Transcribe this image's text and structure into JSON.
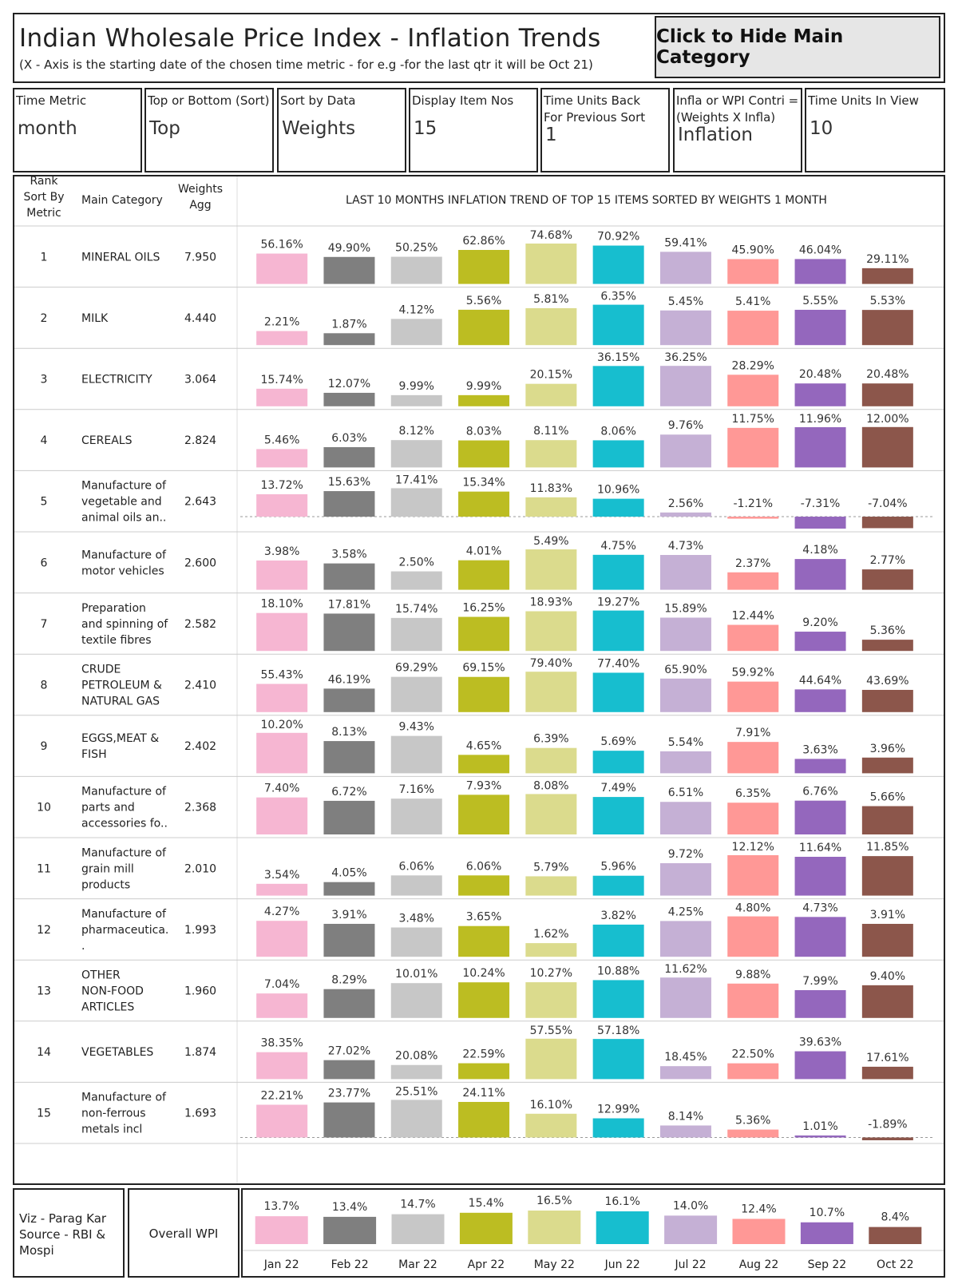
{
  "header": {
    "title": "Indian Wholesale Price Index - Inflation Trends",
    "subtitle": "(X - Axis is the starting date of the chosen time metric - for e.g -for the last qtr it will be Oct 21)",
    "hide_button": "Click to Hide Main Category"
  },
  "params": [
    {
      "label": "Time Metric",
      "value": "month"
    },
    {
      "label": "Top or Bottom (Sort)",
      "value": "Top"
    },
    {
      "label": "Sort by Data",
      "value": "Weights"
    },
    {
      "label": "Display Item Nos",
      "value": "15"
    },
    {
      "label": "Time Units Back\nFor Previous Sort",
      "value": "1"
    },
    {
      "label": "Infla or WPI Contri =\n(Weights X Infla)",
      "value": "Inflation"
    },
    {
      "label": "Time Units In View",
      "value": "10"
    }
  ],
  "table": {
    "col_rank": "Rank\nSort By\nMetric",
    "col_category": "Main Category",
    "col_weights": "Weights\nAgg"
  },
  "footer": {
    "credit": "Viz - Parag Kar\nSource - RBI &\nMospi",
    "overall_label": "Overall WPI"
  },
  "colors": [
    "#f6b6d2",
    "#7f7f7f",
    "#c7c7c7",
    "#bcbd22",
    "#dbdb8d",
    "#17becf",
    "#c5b0d5",
    "#ff9896",
    "#9467bd",
    "#8c564b"
  ],
  "chart_data": {
    "type": "bar",
    "title": "LAST 10 MONTHS INFLATION TREND OF TOP 15 ITEMS SORTED BY WEIGHTS 1 MONTH",
    "categories": [
      "Jan 22",
      "Feb 22",
      "Mar 22",
      "Apr 22",
      "May 22",
      "Jun 22",
      "Jul 22",
      "Aug 22",
      "Sep 22",
      "Oct 22"
    ],
    "rows": [
      {
        "rank": "1",
        "name": "MINERAL OILS",
        "weight": "7.950",
        "values": [
          56.16,
          49.9,
          50.25,
          62.86,
          74.68,
          70.92,
          59.41,
          45.9,
          46.04,
          29.11
        ]
      },
      {
        "rank": "2",
        "name": "MILK",
        "weight": "4.440",
        "values": [
          2.21,
          1.87,
          4.12,
          5.56,
          5.81,
          6.35,
          5.45,
          5.41,
          5.55,
          5.53
        ]
      },
      {
        "rank": "3",
        "name": "ELECTRICITY",
        "weight": "3.064",
        "values": [
          15.74,
          12.07,
          9.99,
          9.99,
          20.15,
          36.15,
          36.25,
          28.29,
          20.48,
          20.48
        ]
      },
      {
        "rank": "4",
        "name": "CEREALS",
        "weight": "2.824",
        "values": [
          5.46,
          6.03,
          8.12,
          8.03,
          8.11,
          8.06,
          9.76,
          11.75,
          11.96,
          12.0
        ]
      },
      {
        "rank": "5",
        "name": "Manufacture of\nvegetable and\nanimal oils an..",
        "weight": "2.643",
        "values": [
          13.72,
          15.63,
          17.41,
          15.34,
          11.83,
          10.96,
          2.56,
          -1.21,
          -7.31,
          -7.04
        ]
      },
      {
        "rank": "6",
        "name": "Manufacture of\nmotor vehicles",
        "weight": "2.600",
        "values": [
          3.98,
          3.58,
          2.5,
          4.01,
          5.49,
          4.75,
          4.73,
          2.37,
          4.18,
          2.77
        ]
      },
      {
        "rank": "7",
        "name": "Preparation\nand spinning of\ntextile fibres",
        "weight": "2.582",
        "values": [
          18.1,
          17.81,
          15.74,
          16.25,
          18.93,
          19.27,
          15.89,
          12.44,
          9.2,
          5.36
        ]
      },
      {
        "rank": "8",
        "name": "CRUDE\nPETROLEUM &\nNATURAL GAS",
        "weight": "2.410",
        "values": [
          55.43,
          46.19,
          69.29,
          69.15,
          79.4,
          77.4,
          65.9,
          59.92,
          44.64,
          43.69
        ]
      },
      {
        "rank": "9",
        "name": "EGGS,MEAT &\nFISH",
        "weight": "2.402",
        "values": [
          10.2,
          8.13,
          9.43,
          4.65,
          6.39,
          5.69,
          5.54,
          7.91,
          3.63,
          3.96
        ]
      },
      {
        "rank": "10",
        "name": "Manufacture of\nparts and\naccessories fo..",
        "weight": "2.368",
        "values": [
          7.4,
          6.72,
          7.16,
          7.93,
          8.08,
          7.49,
          6.51,
          6.35,
          6.76,
          5.66
        ]
      },
      {
        "rank": "11",
        "name": "Manufacture of\ngrain mill\nproducts",
        "weight": "2.010",
        "values": [
          3.54,
          4.05,
          6.06,
          6.06,
          5.79,
          5.96,
          9.72,
          12.12,
          11.64,
          11.85
        ]
      },
      {
        "rank": "12",
        "name": "Manufacture of\npharmaceutica.\n.",
        "weight": "1.993",
        "values": [
          4.27,
          3.91,
          3.48,
          3.65,
          1.62,
          3.82,
          4.25,
          4.8,
          4.73,
          3.91
        ]
      },
      {
        "rank": "13",
        "name": "OTHER\nNON-FOOD\nARTICLES",
        "weight": "1.960",
        "values": [
          7.04,
          8.29,
          10.01,
          10.24,
          10.27,
          10.88,
          11.62,
          9.88,
          7.99,
          9.4
        ]
      },
      {
        "rank": "14",
        "name": "VEGETABLES",
        "weight": "1.874",
        "values": [
          38.35,
          27.02,
          20.08,
          22.59,
          57.55,
          57.18,
          18.45,
          22.5,
          39.63,
          17.61
        ]
      },
      {
        "rank": "15",
        "name": "Manufacture of\nnon-ferrous\nmetals incl",
        "weight": "1.693",
        "values": [
          22.21,
          23.77,
          25.51,
          24.11,
          16.1,
          12.99,
          8.14,
          5.36,
          1.01,
          -1.89
        ]
      }
    ],
    "overall": {
      "label": "Overall WPI",
      "values": [
        13.7,
        13.4,
        14.7,
        15.4,
        16.5,
        16.1,
        14.0,
        12.4,
        10.7,
        8.4
      ]
    }
  }
}
